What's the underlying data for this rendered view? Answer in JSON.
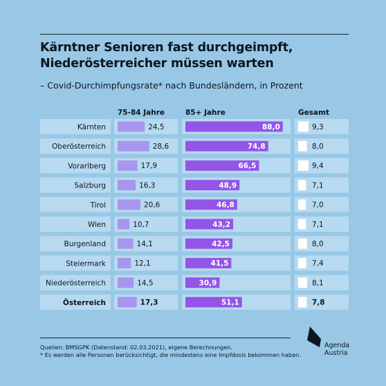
{
  "header": {
    "title_lines": [
      "Kärntner Senioren fast durchgeimpft,",
      "Niederösterreicher müssen warten"
    ],
    "subtitle": "– Covid-Durchimpfungsrate* nach Bundesländern, in Prozent"
  },
  "footer": {
    "source": "Quellen: BMSGPK (Datenstand: 02.03.2021), eigene Berechnungen.",
    "note": "* Es werden alle Personen berücksichtigt, die mindestens eine Impfdosis bekommen haben."
  },
  "logo": {
    "icon": "agenda-austria-logo-icon",
    "line1": "Agenda",
    "line2": "Austria"
  },
  "colors": {
    "background": "#98c8e6",
    "panel": "#b8daf0",
    "bar_75_84": "#a796ee",
    "bar_85plus": "#9355e8",
    "bar_total": "#ffffff",
    "text": "#0d1520"
  },
  "chart_data": {
    "type": "bar",
    "title": "Kärntner Senioren fast durchgeimpft, Niederösterreicher müssen warten",
    "subtitle": "– Covid-Durchimpfungsrate* nach Bundesländern, in Prozent",
    "categories": [
      "Kärnten",
      "Oberösterreich",
      "Vorarlberg",
      "Salzburg",
      "Tirol",
      "Wien",
      "Burgenland",
      "Steiermark",
      "Niederösterreich",
      "Österreich"
    ],
    "highlighted_category": "Österreich",
    "value_labels": [
      [
        "24,5",
        "28,6",
        "17,9",
        "16,3",
        "20,6",
        "10,7",
        "14,1",
        "12,1",
        "14,5",
        "17,3"
      ],
      [
        "88,0",
        "74,8",
        "66,5",
        "48,9",
        "46,8",
        "43,2",
        "42,5",
        "41,5",
        "30,9",
        "51,1"
      ],
      [
        "9,3",
        "8,0",
        "9,4",
        "7,1",
        "7,0",
        "7,1",
        "8,0",
        "7,4",
        "8,1",
        "7,8"
      ]
    ],
    "series": [
      {
        "name": "75-84 Jahre",
        "values": [
          24.5,
          28.6,
          17.9,
          16.3,
          20.6,
          10.7,
          14.1,
          12.1,
          14.5,
          17.3
        ]
      },
      {
        "name": "85+ Jahre",
        "values": [
          88.0,
          74.8,
          66.5,
          48.9,
          46.8,
          43.2,
          42.5,
          41.5,
          30.9,
          51.1
        ]
      },
      {
        "name": "Gesamt",
        "values": [
          9.3,
          8.0,
          9.4,
          7.1,
          7.0,
          7.1,
          8.0,
          7.4,
          8.1,
          7.8
        ]
      }
    ],
    "ylim": [
      0,
      100
    ],
    "legend": "column headers above each panel",
    "grid": false
  }
}
